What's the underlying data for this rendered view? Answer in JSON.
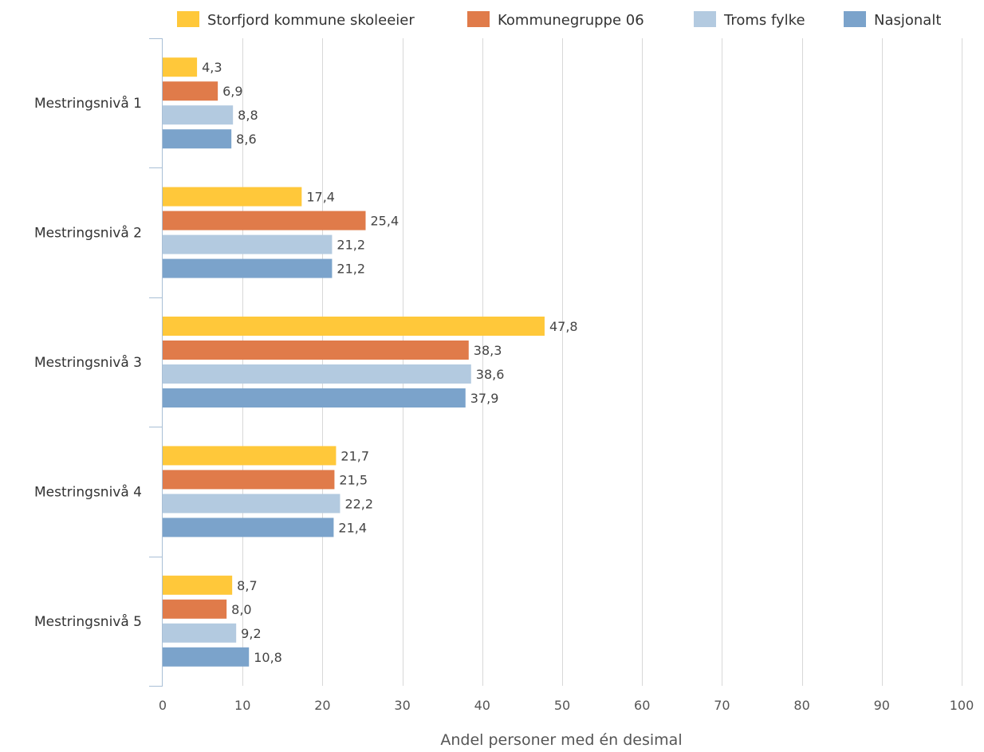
{
  "chart_data": {
    "type": "bar",
    "orientation": "horizontal",
    "categories": [
      "Mestringsnivå 1",
      "Mestringsnivå 2",
      "Mestringsnivå 3",
      "Mestringsnivå 4",
      "Mestringsnivå 5"
    ],
    "series": [
      {
        "name": "Storfjord kommune skoleeier",
        "color": "#FFC83A",
        "values": [
          4.3,
          17.4,
          47.8,
          21.7,
          8.7
        ],
        "labels": [
          "4,3",
          "17,4",
          "47,8",
          "21,7",
          "8,7"
        ]
      },
      {
        "name": "Kommunegruppe 06",
        "color": "#E07B4A",
        "values": [
          6.9,
          25.4,
          38.3,
          21.5,
          8.0
        ],
        "labels": [
          "6,9",
          "25,4",
          "38,3",
          "21,5",
          "8,0"
        ]
      },
      {
        "name": "Troms fylke",
        "color": "#B3CAE0",
        "values": [
          8.8,
          21.2,
          38.6,
          22.2,
          9.2
        ],
        "labels": [
          "8,8",
          "21,2",
          "38,6",
          "22,2",
          "9,2"
        ]
      },
      {
        "name": "Nasjonalt",
        "color": "#7BA3CB",
        "values": [
          8.6,
          21.2,
          37.9,
          21.4,
          10.8
        ],
        "labels": [
          "8,6",
          "21,2",
          "37,9",
          "21,4",
          "10,8"
        ]
      }
    ],
    "xlabel": "Andel personer med én desimal",
    "xlim": [
      0,
      100
    ],
    "xticks": [
      0,
      10,
      20,
      30,
      40,
      50,
      60,
      70,
      80,
      90,
      100
    ],
    "grid": true,
    "legend_position": "top"
  }
}
